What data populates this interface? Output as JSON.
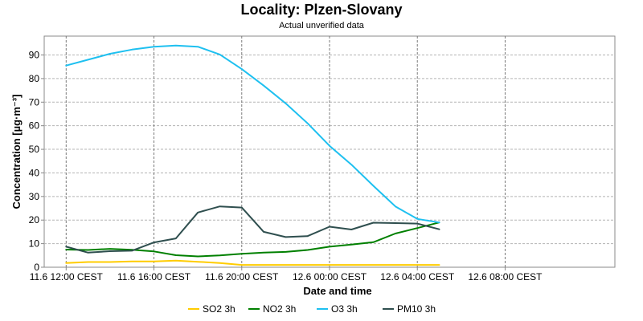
{
  "chart_data": {
    "type": "line",
    "title": "Locality: Plzen-Slovany",
    "subtitle": "Actual unverified data",
    "xlabel": "Date and time",
    "ylabel": "Concentration [µg·m⁻³]",
    "ylim": [
      0,
      98
    ],
    "yticks": [
      0,
      10,
      20,
      30,
      40,
      50,
      60,
      70,
      80,
      90
    ],
    "xlim": [
      "2024-06-11T11:00",
      "2024-06-12T13:00"
    ],
    "xticks": [
      {
        "value": "2024-06-11T12:00",
        "label": "11.6 12:00 CEST"
      },
      {
        "value": "2024-06-11T16:00",
        "label": "11.6 16:00 CEST"
      },
      {
        "value": "2024-06-11T20:00",
        "label": "11.6 20:00 CEST"
      },
      {
        "value": "2024-06-12T00:00",
        "label": "12.6 00:00 CEST"
      },
      {
        "value": "2024-06-12T04:00",
        "label": "12.6 04:00 CEST"
      },
      {
        "value": "2024-06-12T08:00",
        "label": "12.6 08:00 CEST"
      }
    ],
    "x": [
      "2024-06-11T12:00",
      "2024-06-11T13:00",
      "2024-06-11T14:00",
      "2024-06-11T15:00",
      "2024-06-11T16:00",
      "2024-06-11T17:00",
      "2024-06-11T18:00",
      "2024-06-11T19:00",
      "2024-06-11T20:00",
      "2024-06-11T21:00",
      "2024-06-11T22:00",
      "2024-06-11T23:00",
      "2024-06-12T00:00",
      "2024-06-12T01:00",
      "2024-06-12T02:00",
      "2024-06-12T03:00",
      "2024-06-12T04:00",
      "2024-06-12T05:00"
    ],
    "grid": true,
    "legend_position": "bottom",
    "series": [
      {
        "name": "SO2 3h",
        "color": "#ffcc00",
        "values": [
          1.8,
          2.2,
          2.2,
          2.5,
          2.5,
          2.8,
          2.3,
          1.8,
          1.0,
          1.0,
          1.0,
          1.0,
          1.0,
          1.0,
          1.0,
          1.0,
          1.0,
          1.0
        ]
      },
      {
        "name": "NO2 3h",
        "color": "#008000",
        "values": [
          7.5,
          7.3,
          7.8,
          7.4,
          6.7,
          5.1,
          4.6,
          5.0,
          5.7,
          6.2,
          6.5,
          7.3,
          8.7,
          9.6,
          10.6,
          14.3,
          16.6,
          19.0
        ]
      },
      {
        "name": "O3 3h",
        "color": "#1ec0f0",
        "values": [
          85.5,
          88.0,
          90.5,
          92.3,
          93.5,
          94.0,
          93.5,
          90.2,
          84.0,
          77.0,
          69.5,
          61.0,
          51.5,
          43.5,
          34.5,
          25.8,
          20.5,
          19.0
        ]
      },
      {
        "name": "PM10 3h",
        "color": "#2f4f4f",
        "values": [
          8.7,
          6.2,
          6.8,
          7.0,
          10.5,
          12.2,
          23.2,
          25.8,
          25.3,
          15.0,
          12.8,
          13.2,
          17.2,
          16.0,
          18.9,
          18.7,
          18.5,
          16.1
        ]
      }
    ]
  }
}
